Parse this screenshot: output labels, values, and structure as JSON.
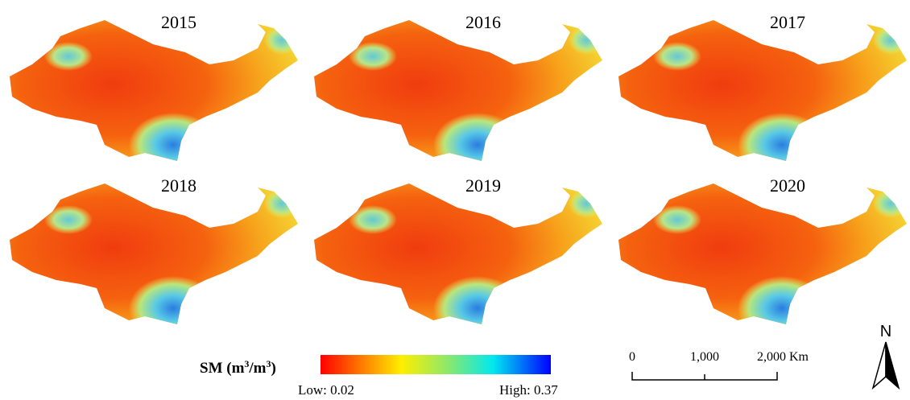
{
  "panels": [
    {
      "title": "2015"
    },
    {
      "title": "2016"
    },
    {
      "title": "2017"
    },
    {
      "title": "2018"
    },
    {
      "title": "2019"
    },
    {
      "title": "2020"
    }
  ],
  "legend": {
    "title": {
      "base": "SM (m",
      "sup1": "3",
      "mid": "/m",
      "sup2": "3",
      "end": ")"
    },
    "low": "Low: 0.02",
    "high": "High: 0.37"
  },
  "scale_bar": {
    "labels": [
      "0",
      "1,000",
      "2,000 Km"
    ]
  },
  "north": "N"
}
